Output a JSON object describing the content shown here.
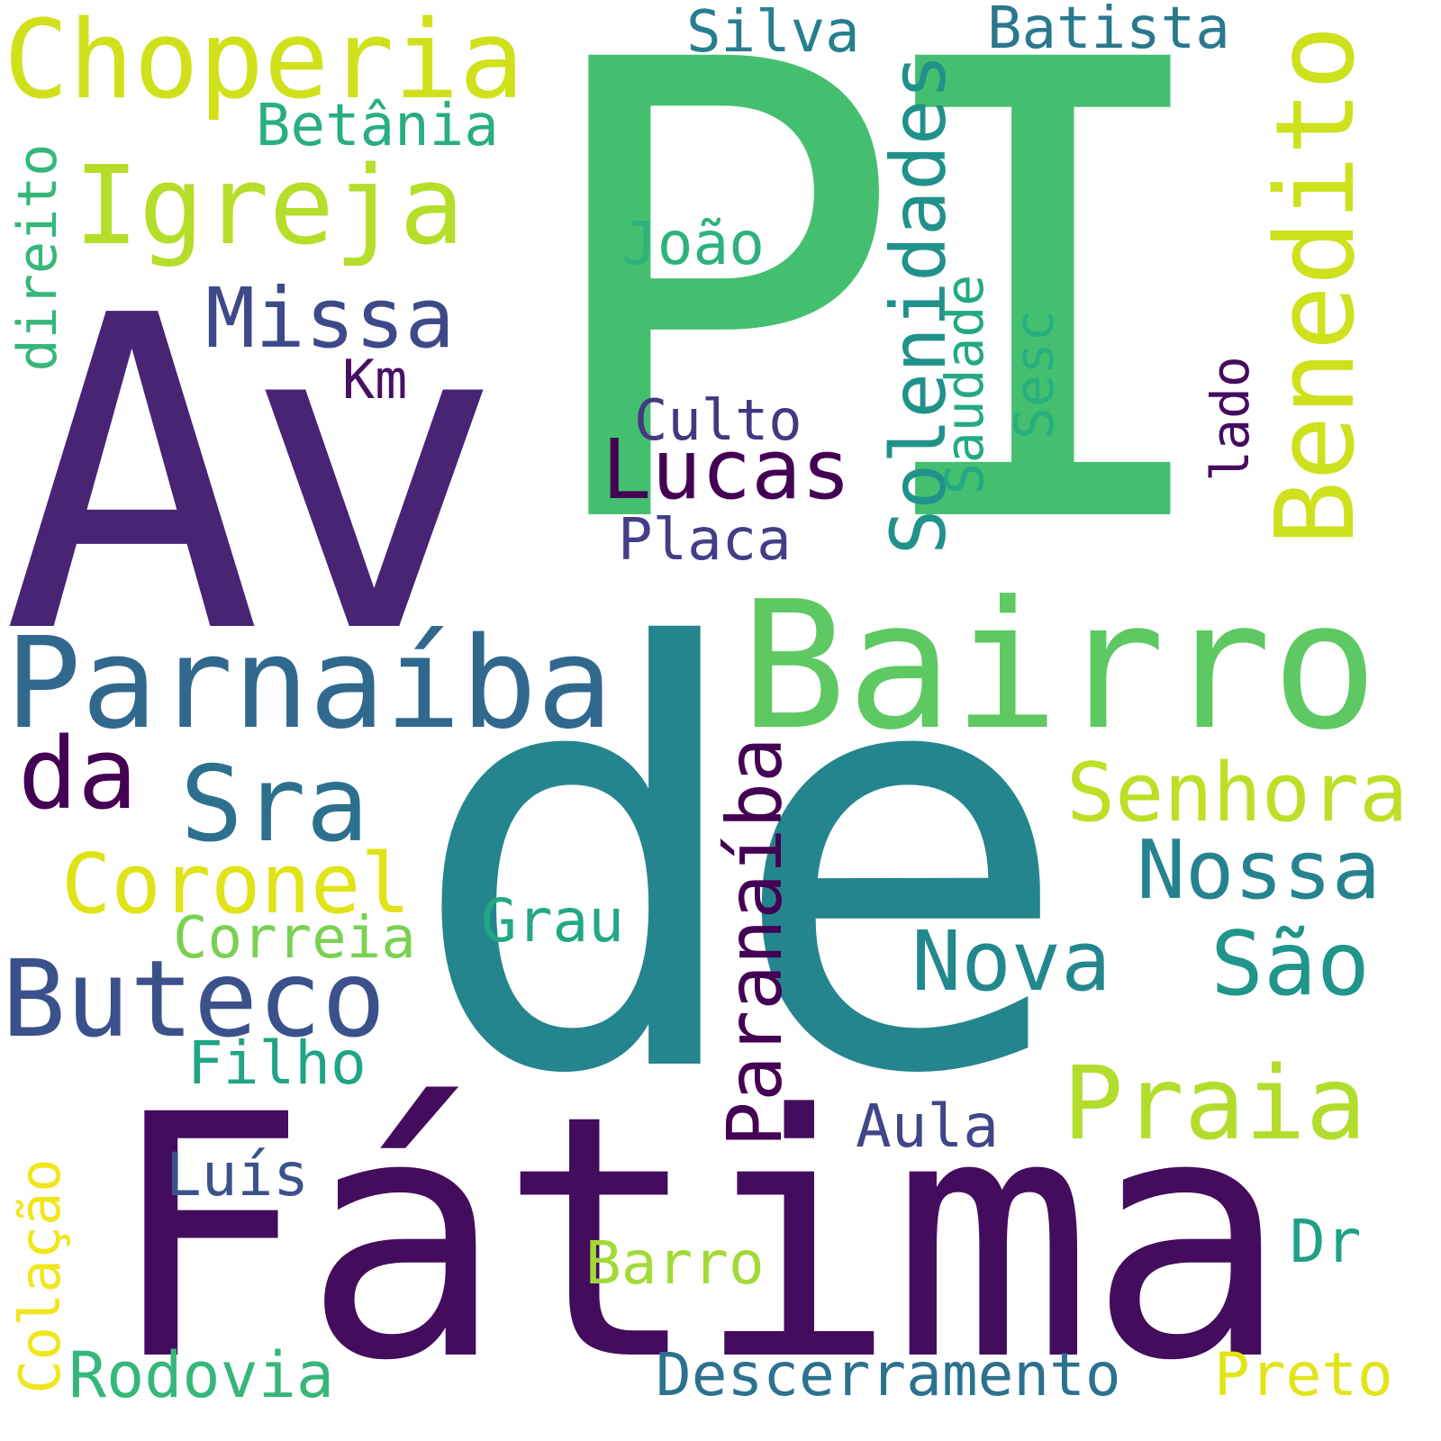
{
  "words": [
    {
      "text": "PI",
      "color": "#44bf70"
    },
    {
      "text": "de",
      "color": "#25858e"
    },
    {
      "text": "Fátima",
      "color": "#440c5c"
    },
    {
      "text": "Av",
      "color": "#482475"
    },
    {
      "text": "Bairro",
      "color": "#5ec962"
    },
    {
      "text": "Parnaíba",
      "color": "#31688e"
    },
    {
      "text": "Choperia",
      "color": "#d0e11c"
    },
    {
      "text": "Igreja",
      "color": "#b5de2b"
    },
    {
      "text": "Benedito",
      "color": "#cde11d"
    },
    {
      "text": "Buteco",
      "color": "#3b518b"
    },
    {
      "text": "Sra",
      "color": "#2d708e"
    },
    {
      "text": "Praia",
      "color": "#b2dd2d"
    },
    {
      "text": "Solenidades",
      "color": "#21918c"
    },
    {
      "text": "Missa",
      "color": "#3e4989"
    },
    {
      "text": "Lucas",
      "color": "#440154"
    },
    {
      "text": "Coronel",
      "color": "#e0e318"
    },
    {
      "text": "Senhora",
      "color": "#bddf26"
    },
    {
      "text": "Nova",
      "color": "#23888e"
    },
    {
      "text": "São",
      "color": "#1f958b"
    },
    {
      "text": "Nossa",
      "color": "#26828e"
    },
    {
      "text": "Paranaíba",
      "color": "#440154"
    },
    {
      "text": "da",
      "color": "#440154"
    },
    {
      "text": "Correia",
      "color": "#7ad151"
    },
    {
      "text": "Filho",
      "color": "#20a486"
    },
    {
      "text": "Rodovia",
      "color": "#35b779"
    },
    {
      "text": "Descerramento",
      "color": "#2c728e"
    },
    {
      "text": "Silva",
      "color": "#277f8e"
    },
    {
      "text": "Batista",
      "color": "#2a788e"
    },
    {
      "text": "Betânia",
      "color": "#28ae80"
    },
    {
      "text": "direito",
      "color": "#35b779"
    },
    {
      "text": "João",
      "color": "#2db27d"
    },
    {
      "text": "Saudade",
      "color": "#23a983"
    },
    {
      "text": "Sesc",
      "color": "#29af7f"
    },
    {
      "text": "lado",
      "color": "#460b5e"
    },
    {
      "text": "Km",
      "color": "#471063"
    },
    {
      "text": "Culto",
      "color": "#453781"
    },
    {
      "text": "Placa",
      "color": "#433e85"
    },
    {
      "text": "Grau",
      "color": "#22a884"
    },
    {
      "text": "Aula",
      "color": "#404688"
    },
    {
      "text": "Luís",
      "color": "#3b528b"
    },
    {
      "text": "Barro",
      "color": "#a2da37"
    },
    {
      "text": "Dr",
      "color": "#1fa188"
    },
    {
      "text": "Colação",
      "color": "#f1e51d"
    },
    {
      "text": "Preto",
      "color": "#e2e418"
    }
  ]
}
